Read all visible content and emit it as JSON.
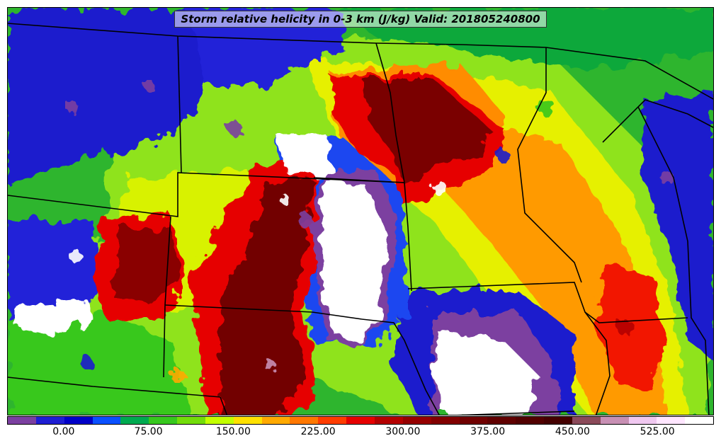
{
  "title": "Storm relative helicity in 0-3 km (J/kg) Valid: 201805240800",
  "colorbar": {
    "colors": [
      "#7b3fa0",
      "#1e1ed2",
      "#0000c8",
      "#0a50ff",
      "#00aa50",
      "#37c81e",
      "#73dc0a",
      "#c3ff00",
      "#ffe100",
      "#ffaa00",
      "#ff7800",
      "#ff3c00",
      "#e60000",
      "#b40000",
      "#960000",
      "#820000",
      "#700000",
      "#600000",
      "#520000",
      "#440000",
      "#8b4a5a",
      "#c890b4",
      "#f0c8f0",
      "#ffe6ff",
      "#ffffff"
    ],
    "tick_labels": [
      "0.00",
      "75.00",
      "150.00",
      "225.00",
      "300.00",
      "375.00",
      "450.00",
      "525.00"
    ],
    "tick_values": [
      0,
      75,
      150,
      225,
      300,
      375,
      450,
      525
    ],
    "range": [
      -50,
      575
    ]
  },
  "regions": [
    {
      "name": "background-green",
      "fill": "#2eb52e"
    },
    {
      "name": "blue-northwest",
      "fill": "#1414c8"
    },
    {
      "name": "blue-east",
      "fill": "#1414c8"
    },
    {
      "name": "purple-lobe",
      "fill": "#7b3fa0"
    },
    {
      "name": "red-core",
      "fill": "#c80000"
    },
    {
      "name": "darkred-core",
      "fill": "#780000"
    },
    {
      "name": "white-core",
      "fill": "#ffffff"
    }
  ]
}
